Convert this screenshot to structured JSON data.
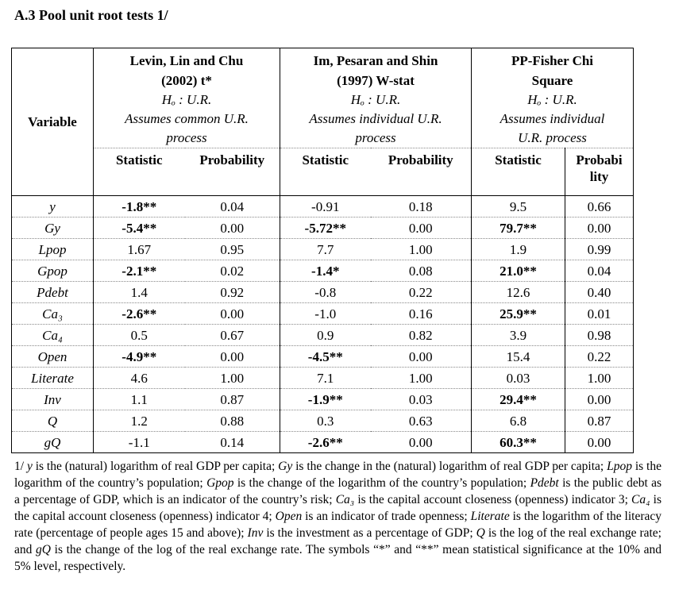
{
  "title": "A.3 Pool unit root tests  1/",
  "table": {
    "variable_header": "Variable",
    "groups": [
      {
        "name": "Levin, Lin and Chu",
        "year": "(2002) t*",
        "hypothesis": "Hₒ : U.R.",
        "assumption_1": "Assumes common U.R.",
        "assumption_2": "process",
        "col1": "Statistic",
        "col2": "Probability"
      },
      {
        "name": "Im, Pesaran and Shin",
        "year": "(1997) W-stat",
        "hypothesis": "Hₒ : U.R.",
        "assumption_1": "Assumes individual U.R.",
        "assumption_2": "process",
        "col1": "Statistic",
        "col2": "Probability"
      },
      {
        "name": "PP-Fisher Chi",
        "year": "Square",
        "hypothesis": "Hₒ : U.R.",
        "assumption_1": "Assumes individual",
        "assumption_2": "U.R. process",
        "col1": "Statistic",
        "col2": "Probabi lity"
      }
    ],
    "rows": [
      {
        "var": "y",
        "llc_stat": "-1.8**",
        "llc_p": "0.04",
        "ips_stat": "-0.91",
        "ips_p": "0.18",
        "pp_stat": "9.5",
        "pp_p": "0.66"
      },
      {
        "var": "Gy",
        "llc_stat": "-5.4**",
        "llc_p": "0.00",
        "ips_stat": "-5.72**",
        "ips_p": "0.00",
        "pp_stat": "79.7**",
        "pp_p": "0.00"
      },
      {
        "var": "Lpop",
        "llc_stat": "1.67",
        "llc_p": "0.95",
        "ips_stat": "7.7",
        "ips_p": "1.00",
        "pp_stat": "1.9",
        "pp_p": "0.99"
      },
      {
        "var": "Gpop",
        "llc_stat": "-2.1**",
        "llc_p": "0.02",
        "ips_stat": "-1.4*",
        "ips_p": "0.08",
        "pp_stat": "21.0**",
        "pp_p": "0.04"
      },
      {
        "var": "Pdebt",
        "llc_stat": "1.4",
        "llc_p": "0.92",
        "ips_stat": "-0.8",
        "ips_p": "0.22",
        "pp_stat": "12.6",
        "pp_p": "0.40"
      },
      {
        "var": "Ca₃",
        "llc_stat": "-2.6**",
        "llc_p": "0.00",
        "ips_stat": "-1.0",
        "ips_p": "0.16",
        "pp_stat": "25.9**",
        "pp_p": "0.01"
      },
      {
        "var": "Ca₄",
        "llc_stat": "0.5",
        "llc_p": "0.67",
        "ips_stat": "0.9",
        "ips_p": "0.82",
        "pp_stat": "3.9",
        "pp_p": "0.98"
      },
      {
        "var": "Open",
        "llc_stat": "-4.9**",
        "llc_p": "0.00",
        "ips_stat": "-4.5**",
        "ips_p": "0.00",
        "pp_stat": "15.4",
        "pp_p": "0.22"
      },
      {
        "var": "Literate",
        "llc_stat": "4.6",
        "llc_p": "1.00",
        "ips_stat": "7.1",
        "ips_p": "1.00",
        "pp_stat": "0.03",
        "pp_p": "1.00"
      },
      {
        "var": "Inv",
        "llc_stat": "1.1",
        "llc_p": "0.87",
        "ips_stat": "-1.9**",
        "ips_p": "0.03",
        "pp_stat": "29.4**",
        "pp_p": "0.00"
      },
      {
        "var": "Q",
        "llc_stat": "1.2",
        "llc_p": "0.88",
        "ips_stat": "0.3",
        "ips_p": "0.63",
        "pp_stat": "6.8",
        "pp_p": "0.87"
      },
      {
        "var": "gQ",
        "llc_stat": "-1.1",
        "llc_p": "0.14",
        "ips_stat": "-2.6**",
        "ips_p": "0.00",
        "pp_stat": "60.3**",
        "pp_p": "0.00"
      }
    ]
  },
  "footnote": {
    "p01": "1/ ",
    "v01": "y",
    "p02": " is the (natural) logarithm of real GDP per capita; ",
    "v02": "Gy",
    "p03": " is the change in the (natural) logarithm of real GDP per capita; ",
    "v03": "Lpop",
    "p04": " is the logarithm of the country’s population; ",
    "v04": "Gpop",
    "p05": " is the change of the logarithm of the country’s population; ",
    "v05": "Pdebt",
    "p06": " is the public debt as a percentage of GDP, which is an indicator of the country’s risk; ",
    "v06": "Ca₃",
    "p07": " is the capital account closeness (openness) indicator 3;  ",
    "v07": "Ca₄",
    "p08": " is the capital account closeness (openness) indicator 4; ",
    "v08": "Open",
    "p09": " is an indicator of trade openness; ",
    "v09": "Literate",
    "p10": " is the logarithm of the literacy rate (percentage of people ages 15 and above); ",
    "v10": "Inv",
    "p11": " is the investment as a percentage of GDP; ",
    "v11": "Q",
    "p12": " is the log of the real exchange rate; and ",
    "v12": "gQ",
    "p13": " is the change of the log of the real exchange rate. The symbols “*” and “**” mean statistical significance at the 10% and 5% level, respectively."
  }
}
